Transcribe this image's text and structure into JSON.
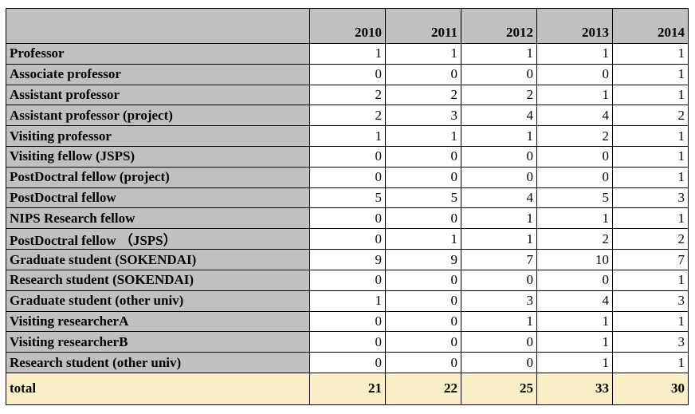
{
  "years": [
    "2010",
    "2011",
    "2012",
    "2013",
    "2014"
  ],
  "rows": [
    {
      "label": "Professor",
      "values": [
        "1",
        "1",
        "1",
        "1",
        "1"
      ]
    },
    {
      "label": "Associate professor",
      "values": [
        "0",
        "0",
        "0",
        "0",
        "1"
      ]
    },
    {
      "label": "Assistant professor",
      "values": [
        "2",
        "2",
        "2",
        "1",
        "1"
      ]
    },
    {
      "label": "Assistant professor (project)",
      "values": [
        "2",
        "3",
        "4",
        "4",
        "2"
      ]
    },
    {
      "label": "Visiting professor",
      "values": [
        "1",
        "1",
        "1",
        "2",
        "1"
      ]
    },
    {
      "label": "Visiting fellow (JSPS)",
      "values": [
        "0",
        "0",
        "0",
        "0",
        "1"
      ]
    },
    {
      "label": "PostDoctral fellow (project)",
      "values": [
        "0",
        "0",
        "0",
        "0",
        "1"
      ]
    },
    {
      "label": "PostDoctral fellow",
      "values": [
        "5",
        "5",
        "4",
        "5",
        "3"
      ]
    },
    {
      "label": "NIPS Research fellow",
      "values": [
        "0",
        "0",
        "1",
        "1",
        "1"
      ]
    },
    {
      "label": "PostDoctral fellow （JSPS）",
      "values": [
        "0",
        "1",
        "1",
        "2",
        "2"
      ]
    },
    {
      "label": "Graduate student (SOKENDAI)",
      "values": [
        "9",
        "9",
        "7",
        "10",
        "7"
      ]
    },
    {
      "label": "Research student (SOKENDAI)",
      "values": [
        "0",
        "0",
        "0",
        "0",
        "1"
      ]
    },
    {
      "label": "Graduate student (other univ)",
      "values": [
        "1",
        "0",
        "3",
        "4",
        "3"
      ]
    },
    {
      "label": "Visiting researcherA",
      "values": [
        "0",
        "0",
        "1",
        "1",
        "1"
      ]
    },
    {
      "label": "Visiting researcherB",
      "values": [
        "0",
        "0",
        "0",
        "1",
        "3"
      ]
    },
    {
      "label": "Research student (other univ)",
      "values": [
        "0",
        "0",
        "0",
        "1",
        "1"
      ]
    }
  ],
  "total": {
    "label": "total",
    "values": [
      "21",
      "22",
      "25",
      "33",
      "30"
    ]
  },
  "colors": {
    "header_bg": "#c0c0c0",
    "total_bg": "#fcefc7"
  }
}
